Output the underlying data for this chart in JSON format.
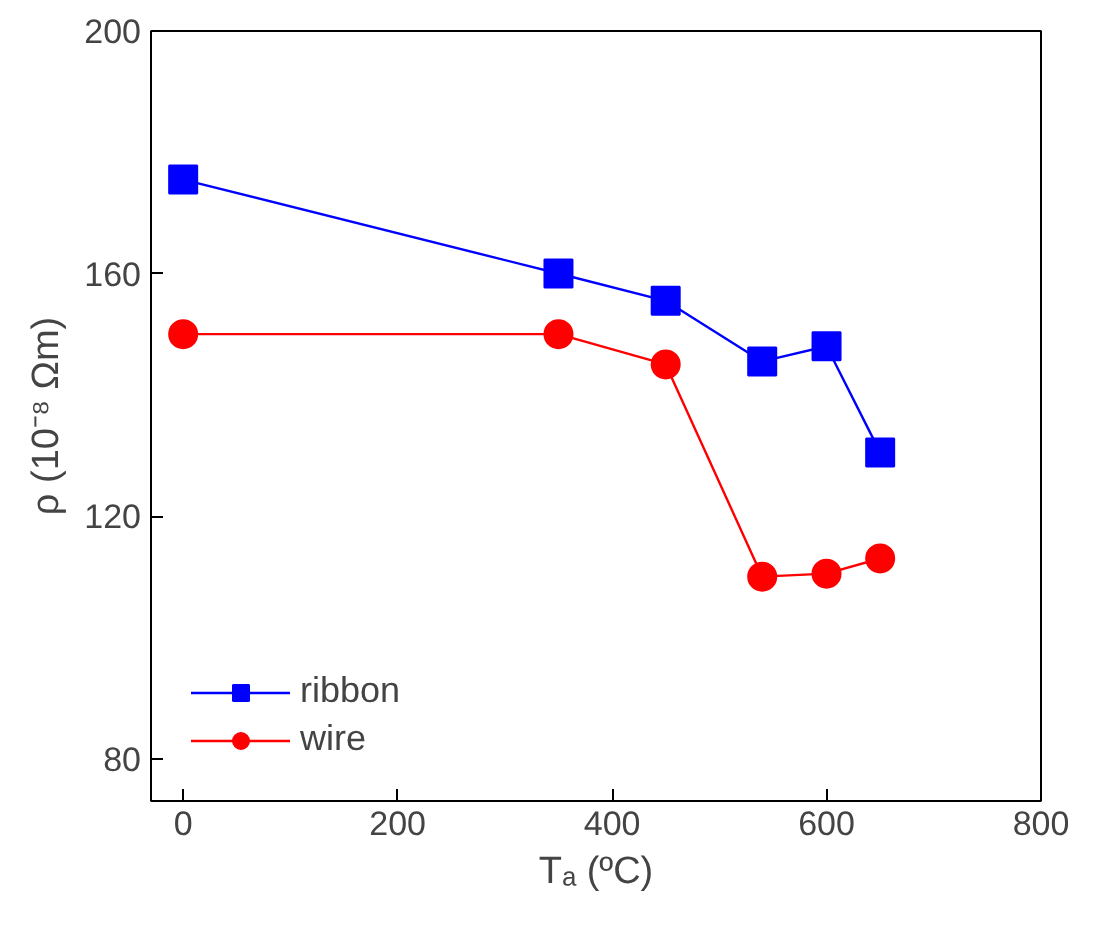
{
  "chart_data": {
    "type": "line",
    "xlabel": "Tₐ (ºC)",
    "ylabel": "ρ (10⁻⁸ Ωm)",
    "x": [
      0,
      350,
      450,
      540,
      600,
      650
    ],
    "series": [
      {
        "name": "ribbon",
        "color": "#0000ff",
        "marker": "square",
        "values": [
          175.5,
          160,
          155.5,
          145.5,
          148,
          130.5
        ]
      },
      {
        "name": "wire",
        "color": "#ff0000",
        "marker": "circle",
        "values": [
          150,
          150,
          145,
          110,
          110.5,
          113
        ]
      }
    ],
    "xlim": [
      -30,
      800
    ],
    "ylim": [
      73,
      200
    ],
    "xticks": [
      0,
      200,
      400,
      600,
      800
    ],
    "yticks": [
      80,
      120,
      160,
      200
    ],
    "grid": false,
    "legend": "bottom left",
    "line_style": "solid"
  }
}
